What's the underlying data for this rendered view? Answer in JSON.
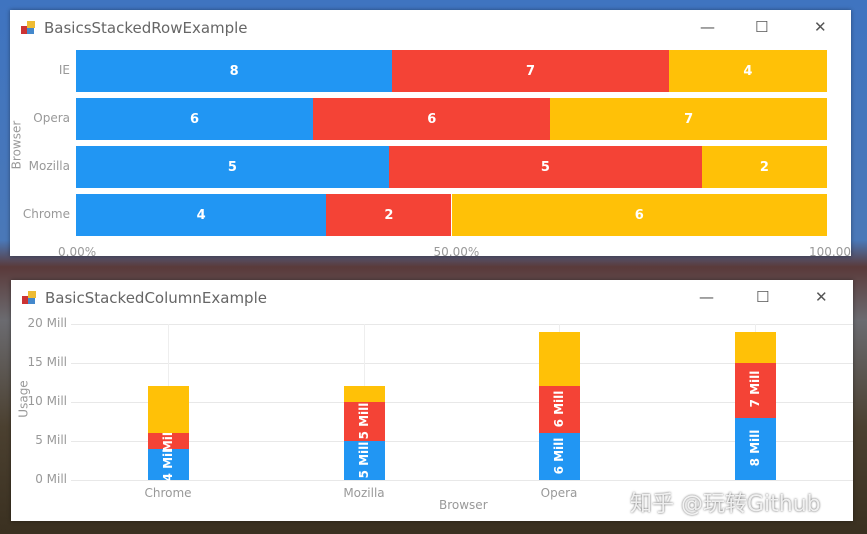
{
  "colors": {
    "series1": "#2196F3",
    "series2": "#F44336",
    "series3": "#FFC107"
  },
  "row_window": {
    "title": "BasicsStackedRowExample",
    "controls": {
      "minimize": "—",
      "maximize": "☐",
      "close": "✕"
    }
  },
  "column_window": {
    "title": "BasicStackedColumnExample",
    "controls": {
      "minimize": "—",
      "maximize": "☐",
      "close": "✕"
    }
  },
  "watermark": "知乎 @玩转Github",
  "chart_data": [
    {
      "type": "bar",
      "orientation": "horizontal",
      "stacked": "percent",
      "ylabel": "Browser",
      "categories": [
        "IE",
        "Opera",
        "Mozilla",
        "Chrome"
      ],
      "series": [
        {
          "values": [
            8,
            6,
            5,
            4
          ],
          "labels": [
            "8",
            "6",
            "5",
            "4"
          ]
        },
        {
          "values": [
            7,
            6,
            5,
            2
          ],
          "labels": [
            "7",
            "6",
            "5",
            "2"
          ]
        },
        {
          "values": [
            4,
            7,
            2,
            6
          ],
          "labels": [
            "4",
            "7",
            "2",
            "6"
          ]
        }
      ],
      "xticks": [
        "0.00%",
        "50.00%",
        "100.00%"
      ],
      "xlim": [
        0,
        100
      ]
    },
    {
      "type": "bar",
      "orientation": "vertical",
      "stacked": "absolute",
      "xlabel": "Browser",
      "ylabel": "Usage",
      "categories": [
        "Chrome",
        "Mozilla",
        "Opera",
        ""
      ],
      "series": [
        {
          "values": [
            4,
            5,
            6,
            8
          ],
          "labels": [
            "4 Mill",
            "5 Mill",
            "6 Mill",
            "8 Mill"
          ]
        },
        {
          "values": [
            2,
            5,
            6,
            7
          ],
          "labels": [
            "Mill",
            "5 Mill",
            "6 Mill",
            "7 Mill"
          ]
        },
        {
          "values": [
            6,
            2,
            7,
            4
          ]
        }
      ],
      "yticks": [
        "20 Mill",
        "15 Mill",
        "10 Mill",
        "5 Mill",
        "0 Mill"
      ],
      "ylim": [
        0,
        20
      ],
      "grid": true
    }
  ]
}
